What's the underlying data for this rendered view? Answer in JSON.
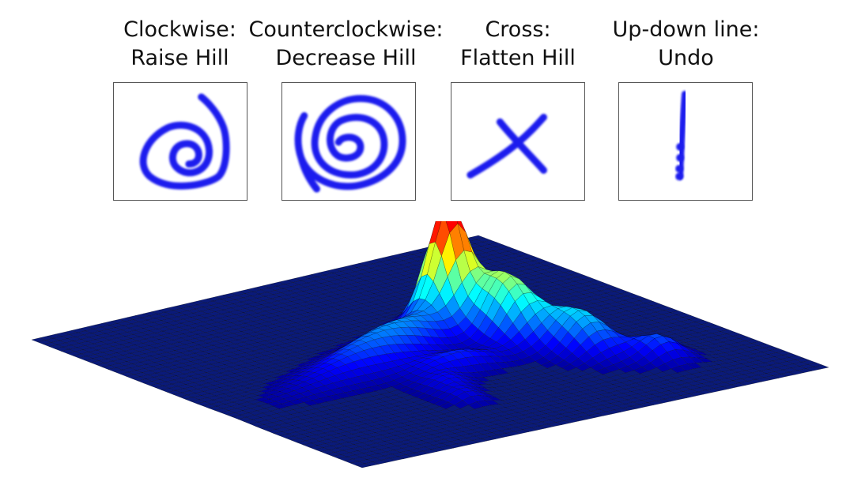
{
  "gestures": [
    {
      "line1": "Clockwise:",
      "line2": "Raise Hill",
      "icon": "clockwise-spiral-icon"
    },
    {
      "line1": "Counterclockwise:",
      "line2": "Decrease Hill",
      "icon": "counterclockwise-spiral-icon"
    },
    {
      "line1": "Cross:",
      "line2": "Flatten Hill",
      "icon": "cross-icon"
    },
    {
      "line1": "Up-down line:",
      "line2": "Undo",
      "icon": "vertical-line-icon"
    }
  ],
  "colors": {
    "stroke": "#1a1aee",
    "surface_low": "#0a1a7a",
    "surface_high": "#e81b10",
    "mesh": "#000000"
  },
  "surface": {
    "type": "3d-surface",
    "colormap": [
      "#00008f",
      "#0000ff",
      "#0080ff",
      "#00ffff",
      "#80ff80",
      "#ffff00",
      "#ff8000",
      "#ff0000"
    ]
  }
}
